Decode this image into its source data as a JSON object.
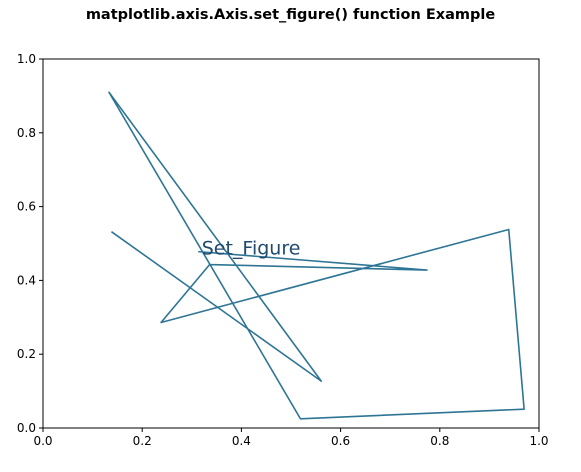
{
  "chart_data": {
    "type": "line",
    "title": "matplotlib.axis.Axis.set_figure() function Example",
    "xlabel": "",
    "ylabel": "",
    "xlim": [
      0,
      1
    ],
    "ylim": [
      0,
      1
    ],
    "x_ticks": [
      0.0,
      0.2,
      0.4,
      0.6,
      0.8,
      1.0
    ],
    "y_ticks": [
      0.0,
      0.2,
      0.4,
      0.6,
      0.8,
      1.0
    ],
    "x_tick_labels": [
      "0.0",
      "0.2",
      "0.4",
      "0.6",
      "0.8",
      "1.0"
    ],
    "y_tick_labels": [
      "0.0",
      "0.2",
      "0.4",
      "0.6",
      "0.8",
      "1.0"
    ],
    "grid": false,
    "series": [
      {
        "color": "#2e7595",
        "x": [
          0.138,
          0.561,
          0.133,
          0.519,
          0.97,
          0.939,
          0.238,
          0.336,
          0.774,
          0.313
        ],
        "y": [
          0.532,
          0.127,
          0.91,
          0.025,
          0.051,
          0.538,
          0.286,
          0.443,
          0.428,
          0.478
        ]
      }
    ],
    "annotations": [
      {
        "text": "Set_Figure",
        "x": 0.32,
        "y": 0.47,
        "color": "#1f4a6e"
      }
    ]
  }
}
